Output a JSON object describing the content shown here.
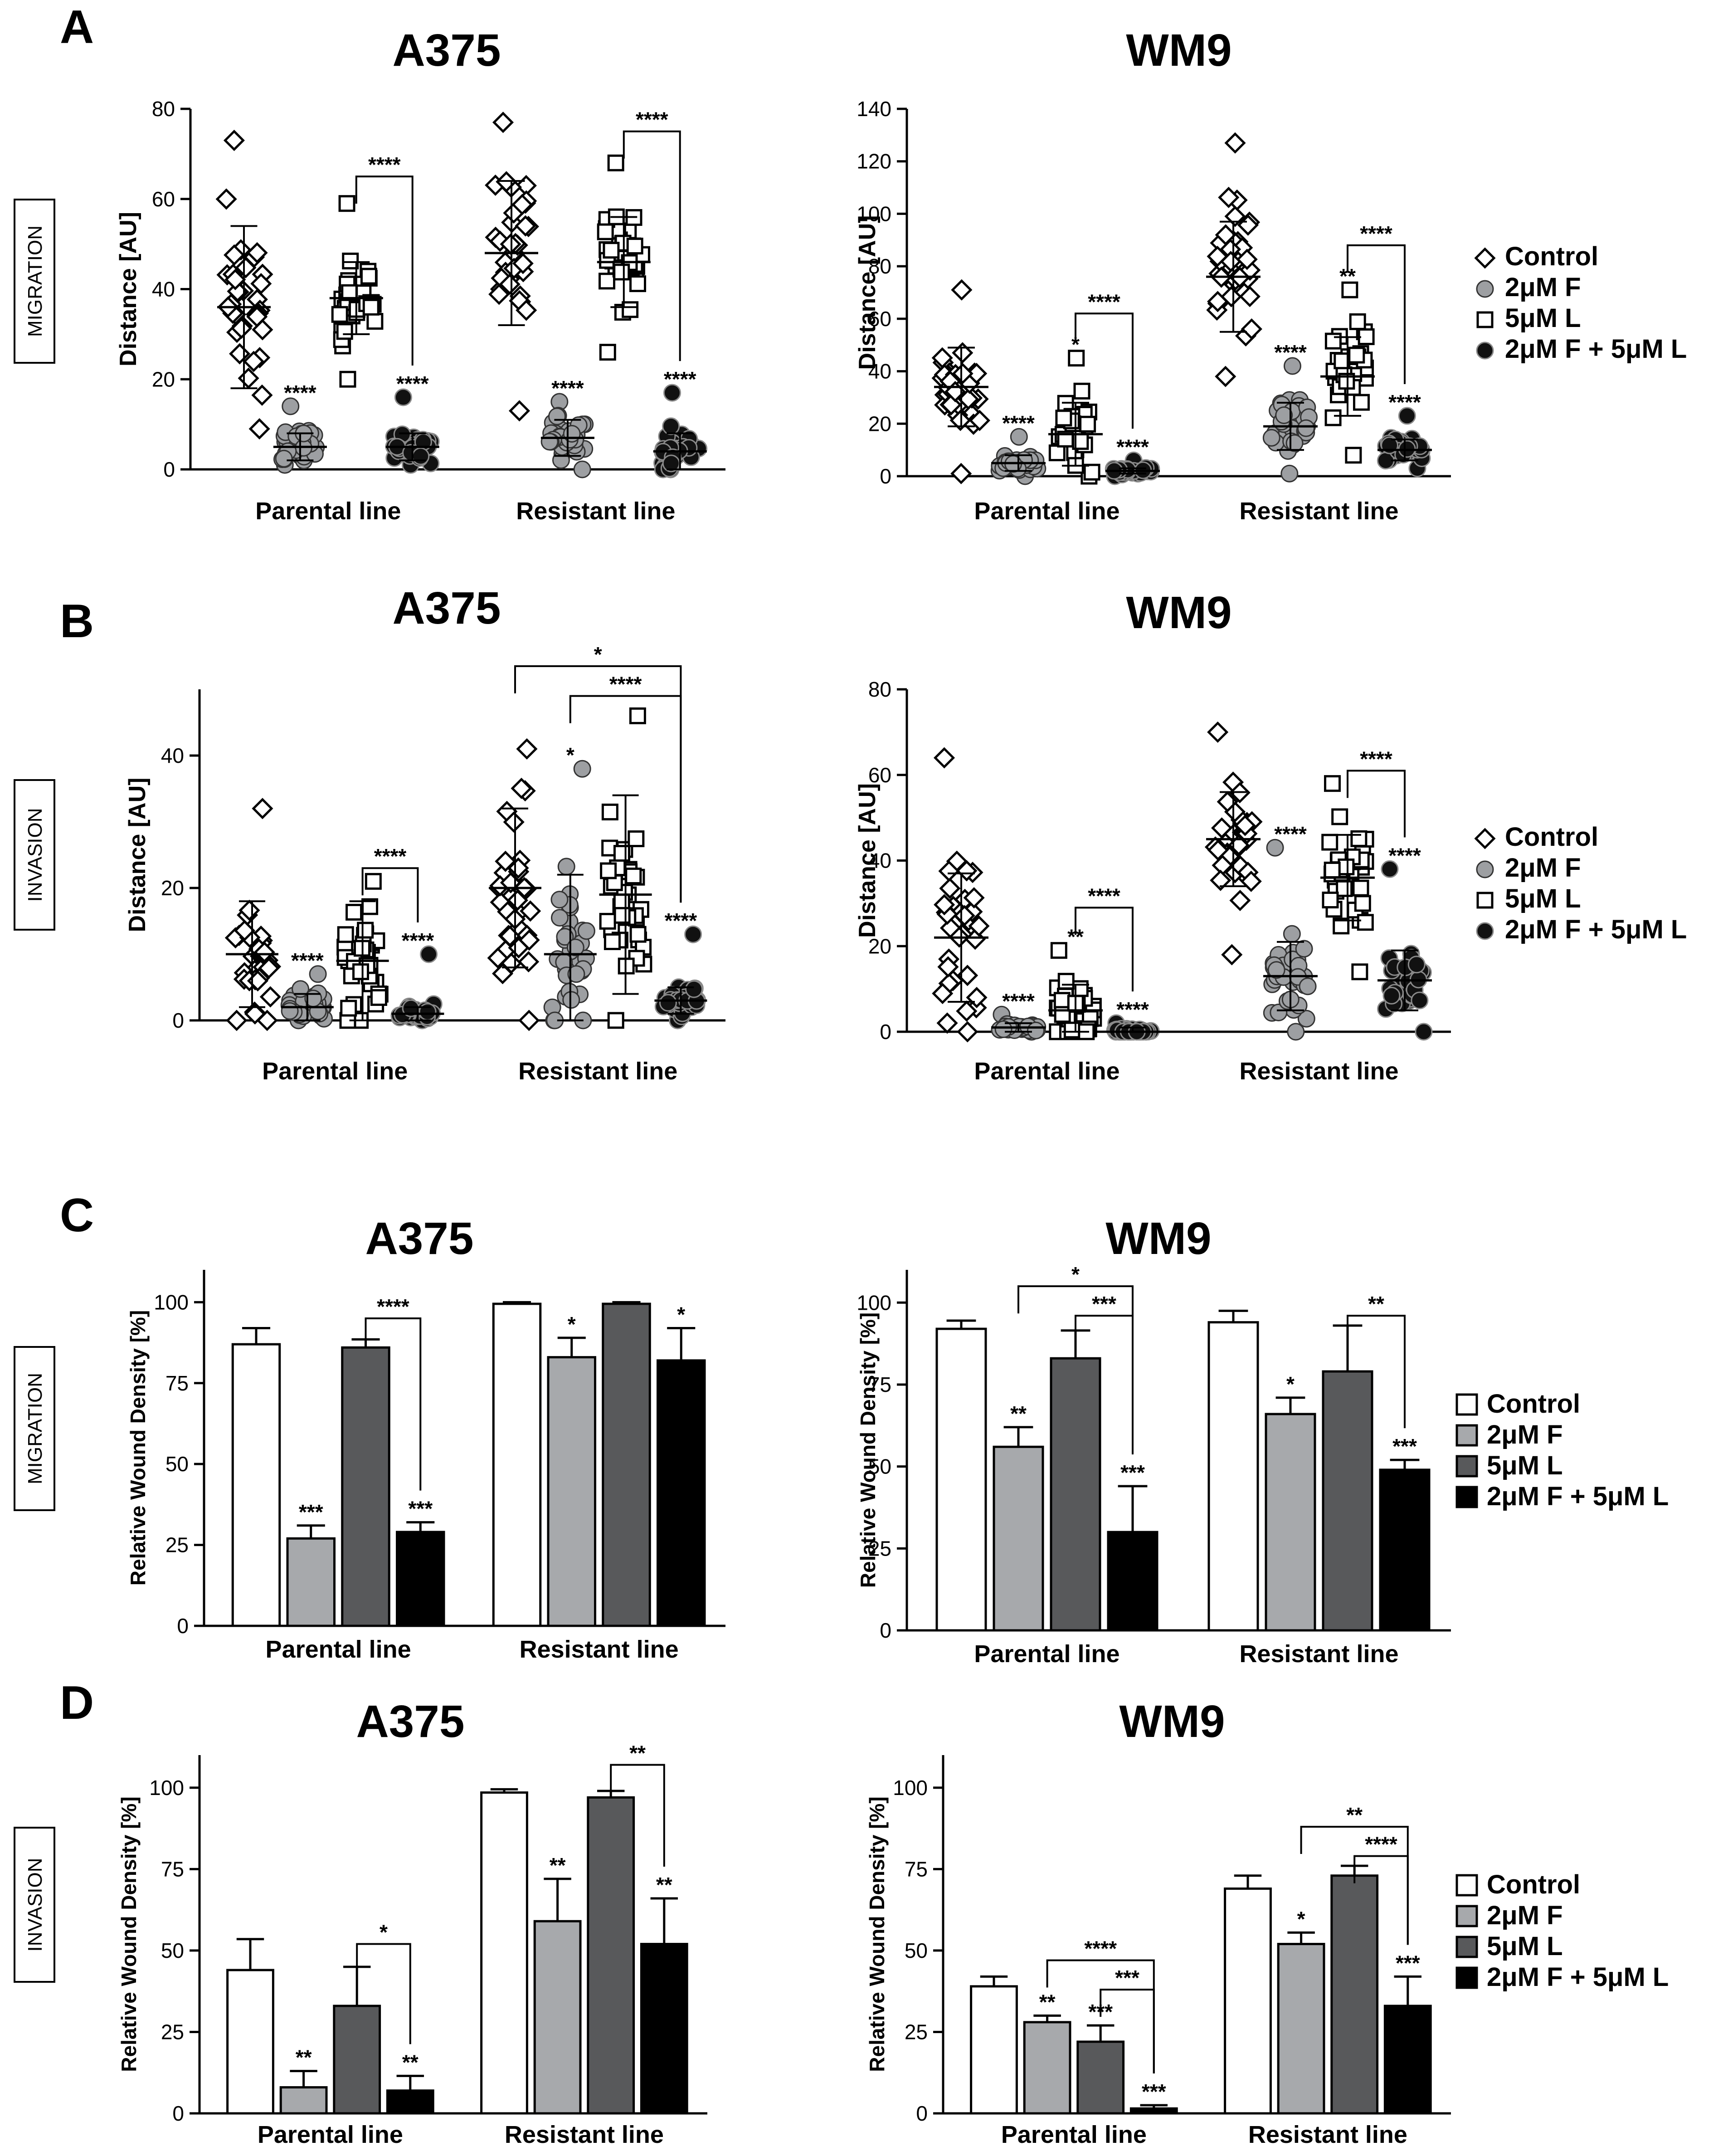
{
  "panel_labels": [
    "A",
    "B",
    "C",
    "D"
  ],
  "side_labels": {
    "A": "MIGRATION",
    "B": "INVASION",
    "C": "MIGRATION",
    "D": "INVASION"
  },
  "colors": {
    "axis": "#000000",
    "control": "#ffffff",
    "f": "#a7a9ac",
    "l": "#58595b",
    "fl": "#000000",
    "scatter_f": "#9d9fa2"
  },
  "legends": {
    "scatter": [
      {
        "label": "Control",
        "marker": "diamond-open"
      },
      {
        "label": "2μM F",
        "marker": "circle-grey"
      },
      {
        "label": "5μM L",
        "marker": "square-open"
      },
      {
        "label": "2μM F + 5μM L",
        "marker": "circle-black"
      }
    ],
    "bar": [
      {
        "label": "Control",
        "marker": "box-white"
      },
      {
        "label": "2μM F",
        "marker": "box-lightgrey"
      },
      {
        "label": "5μM L",
        "marker": "box-darkgrey"
      },
      {
        "label": "2μM F + 5μM L",
        "marker": "box-black"
      }
    ]
  },
  "chart_data": [
    {
      "id": "A_A375",
      "panel": "A",
      "type": "scatter",
      "title": "A375",
      "ylabel": "Distance [AU]",
      "ylim": [
        0,
        80
      ],
      "yticks": [
        0,
        20,
        40,
        60,
        80
      ],
      "groups": [
        "Parental line",
        "Resistant line"
      ],
      "series": [
        "Control",
        "2μM F",
        "5μM L",
        "2μM F + 5μM L"
      ],
      "means": [
        [
          36,
          5,
          38,
          5
        ],
        [
          48,
          7,
          46,
          4
        ]
      ],
      "sds": [
        [
          18,
          3,
          8,
          3
        ],
        [
          16,
          4,
          10,
          4
        ]
      ],
      "ranges": [
        [
          [
            9,
            73
          ],
          [
            1,
            14
          ],
          [
            20,
            59
          ],
          [
            1,
            16
          ]
        ],
        [
          [
            13,
            77
          ],
          [
            0,
            15
          ],
          [
            26,
            68
          ],
          [
            0,
            17
          ]
        ]
      ],
      "annotations": [
        {
          "group": 0,
          "series": 1,
          "text": "****"
        },
        {
          "group": 0,
          "series": 3,
          "text": "****"
        },
        {
          "group": 1,
          "series": 1,
          "text": "****"
        },
        {
          "group": 1,
          "series": 3,
          "text": "****"
        }
      ],
      "brackets": [
        {
          "group": 0,
          "from": 2,
          "to": 3,
          "y": 65,
          "text": "****"
        },
        {
          "group": 1,
          "from": 2,
          "to": 3,
          "y": 75,
          "text": "****"
        }
      ]
    },
    {
      "id": "A_WM9",
      "panel": "A",
      "type": "scatter",
      "title": "WM9",
      "ylabel": "Distance [AU]",
      "ylim": [
        0,
        140
      ],
      "yticks": [
        0,
        20,
        40,
        60,
        80,
        100,
        120,
        140
      ],
      "groups": [
        "Parental line",
        "Resistant line"
      ],
      "series": [
        "Control",
        "2μM F",
        "5μM L",
        "2μM F + 5μM L"
      ],
      "means": [
        [
          34,
          5,
          16,
          2
        ],
        [
          76,
          19,
          38,
          10
        ]
      ],
      "sds": [
        [
          15,
          3,
          12,
          1
        ],
        [
          21,
          9,
          15,
          4
        ]
      ],
      "ranges": [
        [
          [
            1,
            71
          ],
          [
            0,
            15
          ],
          [
            0,
            45
          ],
          [
            0,
            6
          ]
        ],
        [
          [
            38,
            127
          ],
          [
            1,
            42
          ],
          [
            8,
            71
          ],
          [
            3,
            23
          ]
        ]
      ],
      "annotations": [
        {
          "group": 0,
          "series": 1,
          "text": "****"
        },
        {
          "group": 0,
          "series": 2,
          "text": "*"
        },
        {
          "group": 0,
          "series": 3,
          "text": "****"
        },
        {
          "group": 1,
          "series": 1,
          "text": "****"
        },
        {
          "group": 1,
          "series": 2,
          "text": "**"
        },
        {
          "group": 1,
          "series": 3,
          "text": "****"
        }
      ],
      "brackets": [
        {
          "group": 0,
          "from": 2,
          "to": 3,
          "y": 62,
          "text": "****"
        },
        {
          "group": 1,
          "from": 2,
          "to": 3,
          "y": 88,
          "text": "****"
        }
      ]
    },
    {
      "id": "B_A375",
      "panel": "B",
      "type": "scatter",
      "title": "A375",
      "ylabel": "Distance [AU]",
      "ylim": [
        0,
        50
      ],
      "yticks": [
        0,
        20,
        40
      ],
      "groups": [
        "Parental line",
        "Resistant line"
      ],
      "series": [
        "Control",
        "2μM F",
        "5μM L",
        "2μM F + 5μM L"
      ],
      "means": [
        [
          10,
          2,
          9,
          1
        ],
        [
          20,
          10,
          19,
          3
        ]
      ],
      "sds": [
        [
          8,
          2,
          9,
          1
        ],
        [
          12,
          12,
          15,
          2
        ]
      ],
      "ranges": [
        [
          [
            0,
            32
          ],
          [
            0,
            7
          ],
          [
            0,
            21
          ],
          [
            0,
            10
          ]
        ],
        [
          [
            0,
            41
          ],
          [
            0,
            38
          ],
          [
            0,
            46
          ],
          [
            0,
            13
          ]
        ]
      ],
      "annotations": [
        {
          "group": 0,
          "series": 1,
          "text": "****"
        },
        {
          "group": 0,
          "series": 3,
          "text": "****"
        },
        {
          "group": 1,
          "series": 1,
          "text": "*"
        },
        {
          "group": 1,
          "series": 3,
          "text": "****"
        }
      ],
      "brackets": [
        {
          "group": 0,
          "from": 2,
          "to": 3,
          "y": 23,
          "text": "****"
        },
        {
          "group": 1,
          "from": 1,
          "to": 3,
          "y": 49,
          "text": "****"
        },
        {
          "group": 1,
          "from": 0,
          "to": 3,
          "y": 53.5,
          "text": "*"
        }
      ]
    },
    {
      "id": "B_WM9",
      "panel": "B",
      "type": "scatter",
      "title": "WM9",
      "ylabel": "Distance [AU]",
      "ylim": [
        0,
        80
      ],
      "yticks": [
        0,
        20,
        40,
        60,
        80
      ],
      "groups": [
        "Parental line",
        "Resistant line"
      ],
      "series": [
        "Control",
        "2μM F",
        "5μM L",
        "2μM F + 5μM L"
      ],
      "means": [
        [
          22,
          1,
          5,
          0
        ],
        [
          45,
          13,
          36,
          12
        ]
      ],
      "sds": [
        [
          15,
          1,
          6,
          1
        ],
        [
          11,
          8,
          10,
          7
        ]
      ],
      "ranges": [
        [
          [
            0,
            64
          ],
          [
            0,
            4
          ],
          [
            0,
            19
          ],
          [
            0,
            2
          ]
        ],
        [
          [
            18,
            70
          ],
          [
            0,
            43
          ],
          [
            14,
            58
          ],
          [
            0,
            38
          ]
        ]
      ],
      "annotations": [
        {
          "group": 0,
          "series": 1,
          "text": "****"
        },
        {
          "group": 0,
          "series": 2,
          "text": "**"
        },
        {
          "group": 0,
          "series": 3,
          "text": "****"
        },
        {
          "group": 1,
          "series": 1,
          "text": "****"
        },
        {
          "group": 1,
          "series": 3,
          "text": "****"
        }
      ],
      "brackets": [
        {
          "group": 0,
          "from": 2,
          "to": 3,
          "y": 29,
          "text": "****"
        },
        {
          "group": 1,
          "from": 2,
          "to": 3,
          "y": 61,
          "text": "****"
        }
      ]
    },
    {
      "id": "C_A375",
      "panel": "C",
      "type": "bar",
      "title": "A375",
      "ylabel": "Relative Wound Density [%]",
      "ylim": [
        0,
        110
      ],
      "yticks": [
        0,
        25,
        50,
        75,
        100
      ],
      "groups": [
        "Parental line",
        "Resistant line"
      ],
      "series": [
        "Control",
        "2μM F",
        "5μM L",
        "2μM F + 5μM L"
      ],
      "values": [
        [
          87,
          27,
          86,
          29
        ],
        [
          99.5,
          83,
          99.5,
          82
        ]
      ],
      "errors": [
        [
          5,
          4,
          2.5,
          3
        ],
        [
          0.5,
          6,
          0.5,
          10
        ]
      ],
      "annotations": [
        {
          "group": 0,
          "series": 1,
          "text": "***"
        },
        {
          "group": 0,
          "series": 3,
          "text": "***"
        },
        {
          "group": 1,
          "series": 1,
          "text": "*"
        },
        {
          "group": 1,
          "series": 3,
          "text": "*"
        }
      ],
      "brackets": [
        {
          "group": 0,
          "from": 2,
          "to": 3,
          "y": 95,
          "text": "****"
        }
      ]
    },
    {
      "id": "C_WM9",
      "panel": "C",
      "type": "bar",
      "title": "WM9",
      "ylabel": "Relative Wound Density [%]",
      "ylim": [
        0,
        110
      ],
      "yticks": [
        0,
        25,
        50,
        75,
        100
      ],
      "groups": [
        "Parental line",
        "Resistant line"
      ],
      "series": [
        "Control",
        "2μM F",
        "5μM L",
        "2μM F + 5μM L"
      ],
      "values": [
        [
          92,
          56,
          83,
          30
        ],
        [
          94,
          66,
          79,
          49
        ]
      ],
      "errors": [
        [
          2.5,
          6,
          8.5,
          14
        ],
        [
          3.5,
          5,
          14,
          3
        ]
      ],
      "annotations": [
        {
          "group": 0,
          "series": 1,
          "text": "**"
        },
        {
          "group": 0,
          "series": 3,
          "text": "***"
        },
        {
          "group": 1,
          "series": 1,
          "text": "*"
        },
        {
          "group": 1,
          "series": 3,
          "text": "***"
        }
      ],
      "brackets": [
        {
          "group": 0,
          "from": 2,
          "to": 3,
          "y": 96,
          "text": "***"
        },
        {
          "group": 0,
          "from": 1,
          "to": 3,
          "y": 105,
          "text": "*"
        },
        {
          "group": 1,
          "from": 2,
          "to": 3,
          "y": 96,
          "text": "**"
        }
      ]
    },
    {
      "id": "D_A375",
      "panel": "D",
      "type": "bar",
      "title": "A375",
      "ylabel": "Relative Wound Density [%]",
      "ylim": [
        0,
        110
      ],
      "yticks": [
        0,
        25,
        50,
        75,
        100
      ],
      "groups": [
        "Parental line",
        "Resistant line"
      ],
      "series": [
        "Control",
        "2μM F",
        "5μM L",
        "2μM F + 5μM L"
      ],
      "values": [
        [
          44,
          8,
          33,
          7
        ],
        [
          98.5,
          59,
          97,
          52
        ]
      ],
      "errors": [
        [
          9.5,
          5,
          12,
          4.5
        ],
        [
          1,
          13,
          2,
          14
        ]
      ],
      "annotations": [
        {
          "group": 0,
          "series": 1,
          "text": "**"
        },
        {
          "group": 0,
          "series": 3,
          "text": "**"
        },
        {
          "group": 1,
          "series": 1,
          "text": "**"
        },
        {
          "group": 1,
          "series": 3,
          "text": "**"
        }
      ],
      "brackets": [
        {
          "group": 0,
          "from": 2,
          "to": 3,
          "y": 52,
          "text": "*"
        },
        {
          "group": 1,
          "from": 2,
          "to": 3,
          "y": 107,
          "text": "**"
        }
      ]
    },
    {
      "id": "D_WM9",
      "panel": "D",
      "type": "bar",
      "title": "WM9",
      "ylabel": "Relative Wound Density [%]",
      "ylim": [
        0,
        110
      ],
      "yticks": [
        0,
        25,
        50,
        75,
        100
      ],
      "groups": [
        "Parental line",
        "Resistant line"
      ],
      "series": [
        "Control",
        "2μM F",
        "5μM L",
        "2μM F + 5μM L"
      ],
      "values": [
        [
          39,
          28,
          22,
          1.5
        ],
        [
          69,
          52,
          73,
          33
        ]
      ],
      "errors": [
        [
          3,
          2,
          5,
          1
        ],
        [
          4,
          3.5,
          3,
          9
        ]
      ],
      "annotations": [
        {
          "group": 0,
          "series": 1,
          "text": "**"
        },
        {
          "group": 0,
          "series": 2,
          "text": "***"
        },
        {
          "group": 0,
          "series": 3,
          "text": "***"
        },
        {
          "group": 1,
          "series": 1,
          "text": "*"
        },
        {
          "group": 1,
          "series": 3,
          "text": "***"
        }
      ],
      "brackets": [
        {
          "group": 0,
          "from": 2,
          "to": 3,
          "y": 38,
          "text": "***"
        },
        {
          "group": 0,
          "from": 1,
          "to": 3,
          "y": 47,
          "text": "****"
        },
        {
          "group": 1,
          "from": 2,
          "to": 3,
          "y": 79,
          "text": "****"
        },
        {
          "group": 1,
          "from": 1,
          "to": 3,
          "y": 88,
          "text": "**"
        }
      ]
    }
  ]
}
